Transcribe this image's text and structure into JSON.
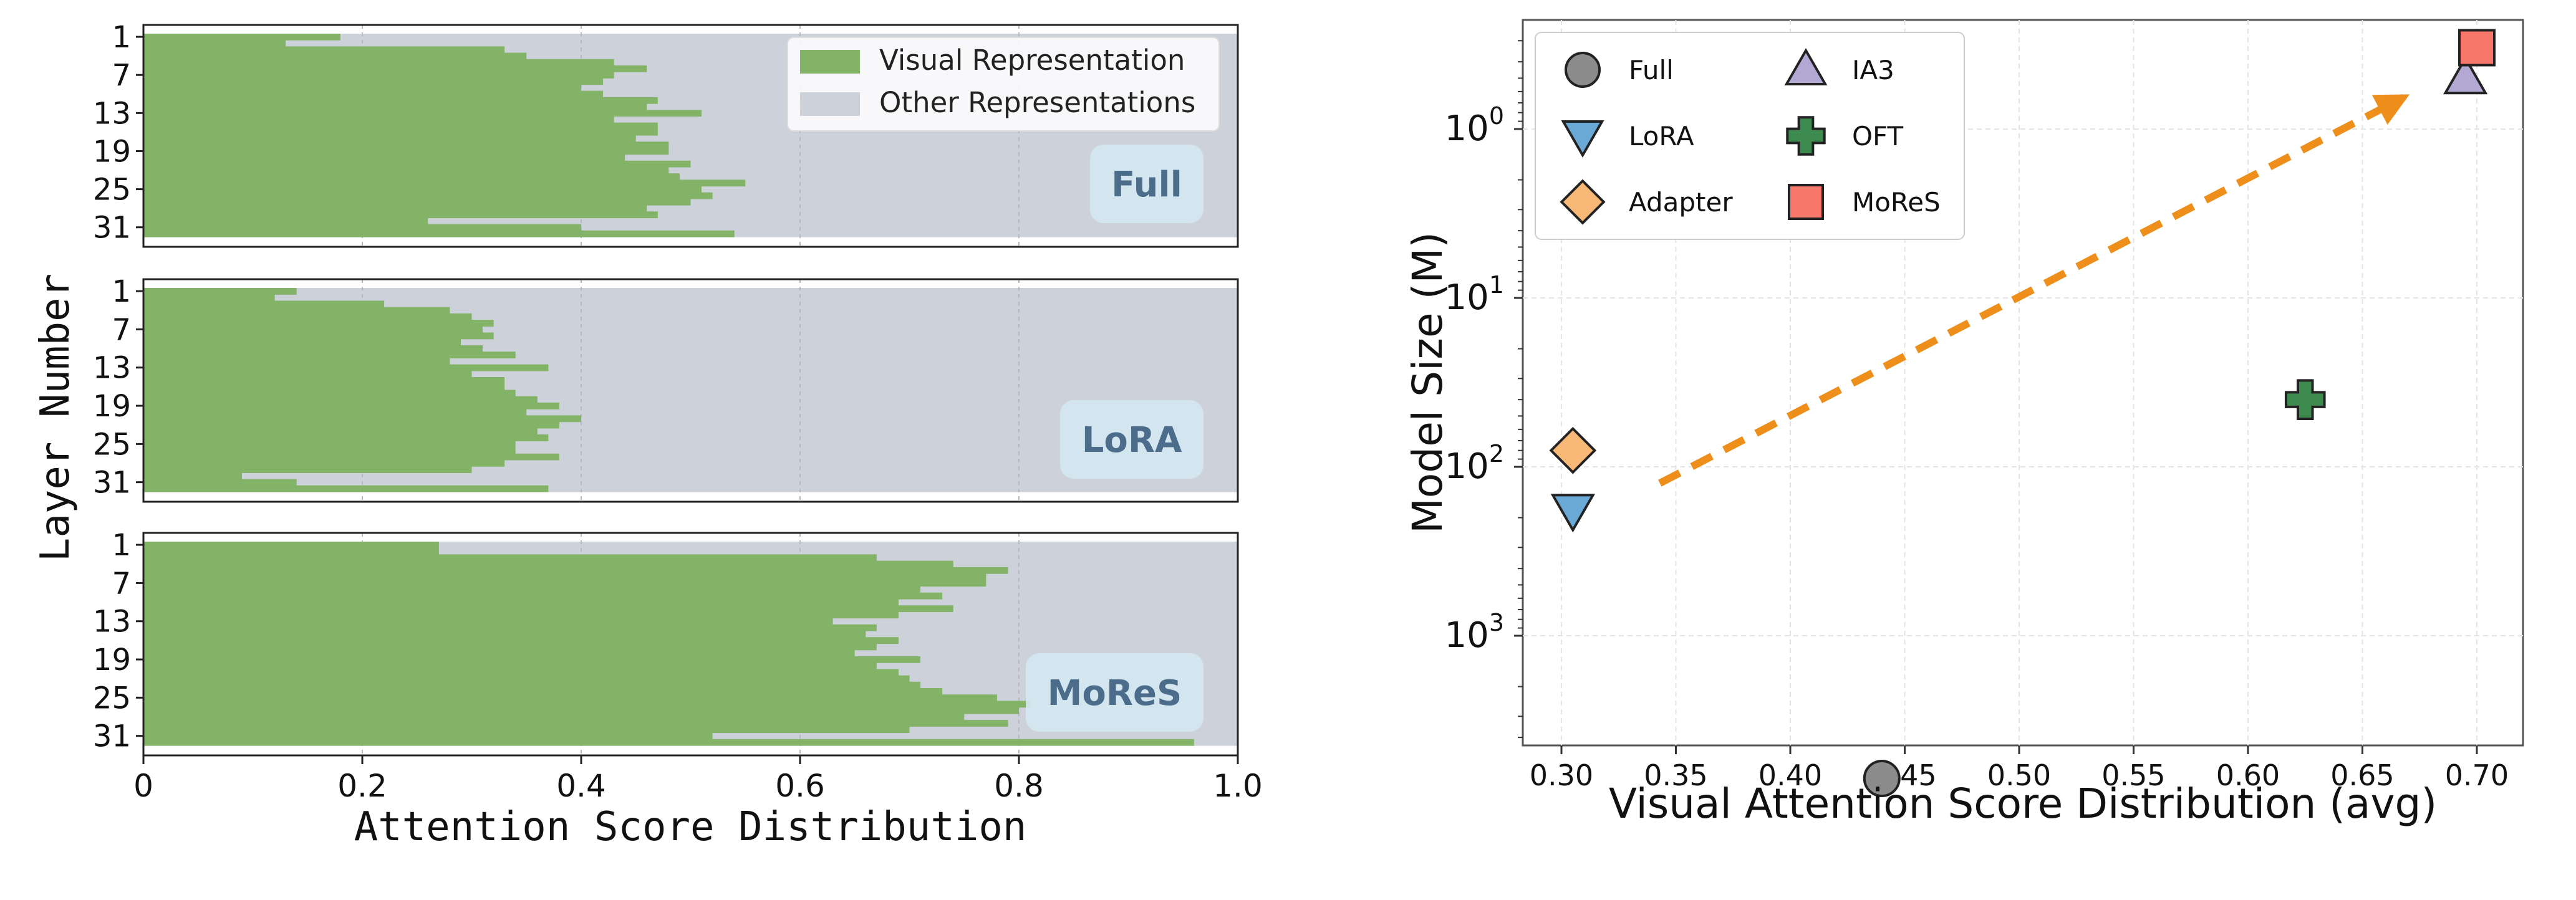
{
  "chart_data": [
    {
      "type": "bar",
      "orientation": "horizontal-stacked",
      "ylabel": "Layer Number",
      "xlabel": "Attention Score Distribution",
      "xlim": [
        0,
        1.0
      ],
      "xticks": [
        "0",
        "0.2",
        "0.4",
        "0.6",
        "0.8",
        "1.0"
      ],
      "yticks": [
        "1",
        "7",
        "13",
        "19",
        "25",
        "31"
      ],
      "legend": {
        "position": "top-right",
        "entries": [
          "Visual Representation",
          "Other Representations"
        ]
      },
      "colors": {
        "visual": "#82b366",
        "other": "#cdd2da",
        "badge": "#d4e6f1",
        "badge_text": "#4b6c8b"
      },
      "layers": [
        1,
        2,
        3,
        4,
        5,
        6,
        7,
        8,
        9,
        10,
        11,
        12,
        13,
        14,
        15,
        16,
        17,
        18,
        19,
        20,
        21,
        22,
        23,
        24,
        25,
        26,
        27,
        28,
        29,
        30,
        31,
        32
      ],
      "panels": [
        {
          "label": "Full",
          "visual": [
            0.18,
            0.13,
            0.33,
            0.35,
            0.43,
            0.46,
            0.43,
            0.42,
            0.4,
            0.42,
            0.47,
            0.46,
            0.51,
            0.43,
            0.47,
            0.47,
            0.45,
            0.48,
            0.48,
            0.44,
            0.5,
            0.48,
            0.49,
            0.55,
            0.51,
            0.52,
            0.5,
            0.46,
            0.47,
            0.26,
            0.4,
            0.54
          ]
        },
        {
          "label": "LoRA",
          "visual": [
            0.14,
            0.12,
            0.22,
            0.28,
            0.3,
            0.32,
            0.31,
            0.32,
            0.29,
            0.31,
            0.34,
            0.28,
            0.37,
            0.3,
            0.33,
            0.33,
            0.34,
            0.36,
            0.38,
            0.35,
            0.4,
            0.38,
            0.36,
            0.37,
            0.34,
            0.34,
            0.38,
            0.33,
            0.3,
            0.09,
            0.14,
            0.37
          ]
        },
        {
          "label": "MoReS",
          "visual": [
            0.27,
            0.27,
            0.67,
            0.74,
            0.79,
            0.77,
            0.77,
            0.71,
            0.73,
            0.69,
            0.74,
            0.69,
            0.63,
            0.67,
            0.66,
            0.69,
            0.67,
            0.65,
            0.71,
            0.67,
            0.69,
            0.7,
            0.71,
            0.73,
            0.78,
            0.81,
            0.8,
            0.75,
            0.79,
            0.7,
            0.52,
            0.96
          ]
        }
      ]
    },
    {
      "type": "scatter",
      "xlabel": "Visual Attention Score Distribution (avg)",
      "ylabel": "Model Size (M)",
      "yscale": "log-inverted",
      "xlim": [
        0.28,
        0.71
      ],
      "xticks": [
        "0.30",
        "0.35",
        "0.40",
        "0.45",
        "0.50",
        "0.55",
        "0.60",
        "0.65",
        "0.70"
      ],
      "yticks": [
        {
          "base": "10",
          "exp": "0",
          "value": 1
        },
        {
          "base": "10",
          "exp": "1",
          "value": 10
        },
        {
          "base": "10",
          "exp": "2",
          "value": 100
        },
        {
          "base": "10",
          "exp": "3",
          "value": 1000
        }
      ],
      "legend": {
        "position": "top-left",
        "columns": 2
      },
      "points": [
        {
          "name": "Full",
          "x": 0.44,
          "y": 7000,
          "marker": "circle",
          "color": "#8c8c8c"
        },
        {
          "name": "LoRA",
          "x": 0.305,
          "y": 180,
          "marker": "triangle-down",
          "color": "#6aa8d6"
        },
        {
          "name": "Adapter",
          "x": 0.305,
          "y": 80,
          "marker": "diamond",
          "color": "#f8b878"
        },
        {
          "name": "IA3",
          "x": 0.695,
          "y": 0.5,
          "marker": "triangle-up",
          "color": "#b3a8d4"
        },
        {
          "name": "OFT",
          "x": 0.625,
          "y": 40,
          "marker": "plus",
          "color": "#3d8a4f"
        },
        {
          "name": "MoReS",
          "x": 0.7,
          "y": 0.33,
          "marker": "square",
          "color": "#f7776a"
        }
      ],
      "arrow": {
        "from": {
          "x": 0.343,
          "y": 125
        },
        "to": {
          "x": 0.668,
          "y": 0.65
        },
        "color": "#ee8f1b",
        "style": "dashed"
      }
    }
  ]
}
